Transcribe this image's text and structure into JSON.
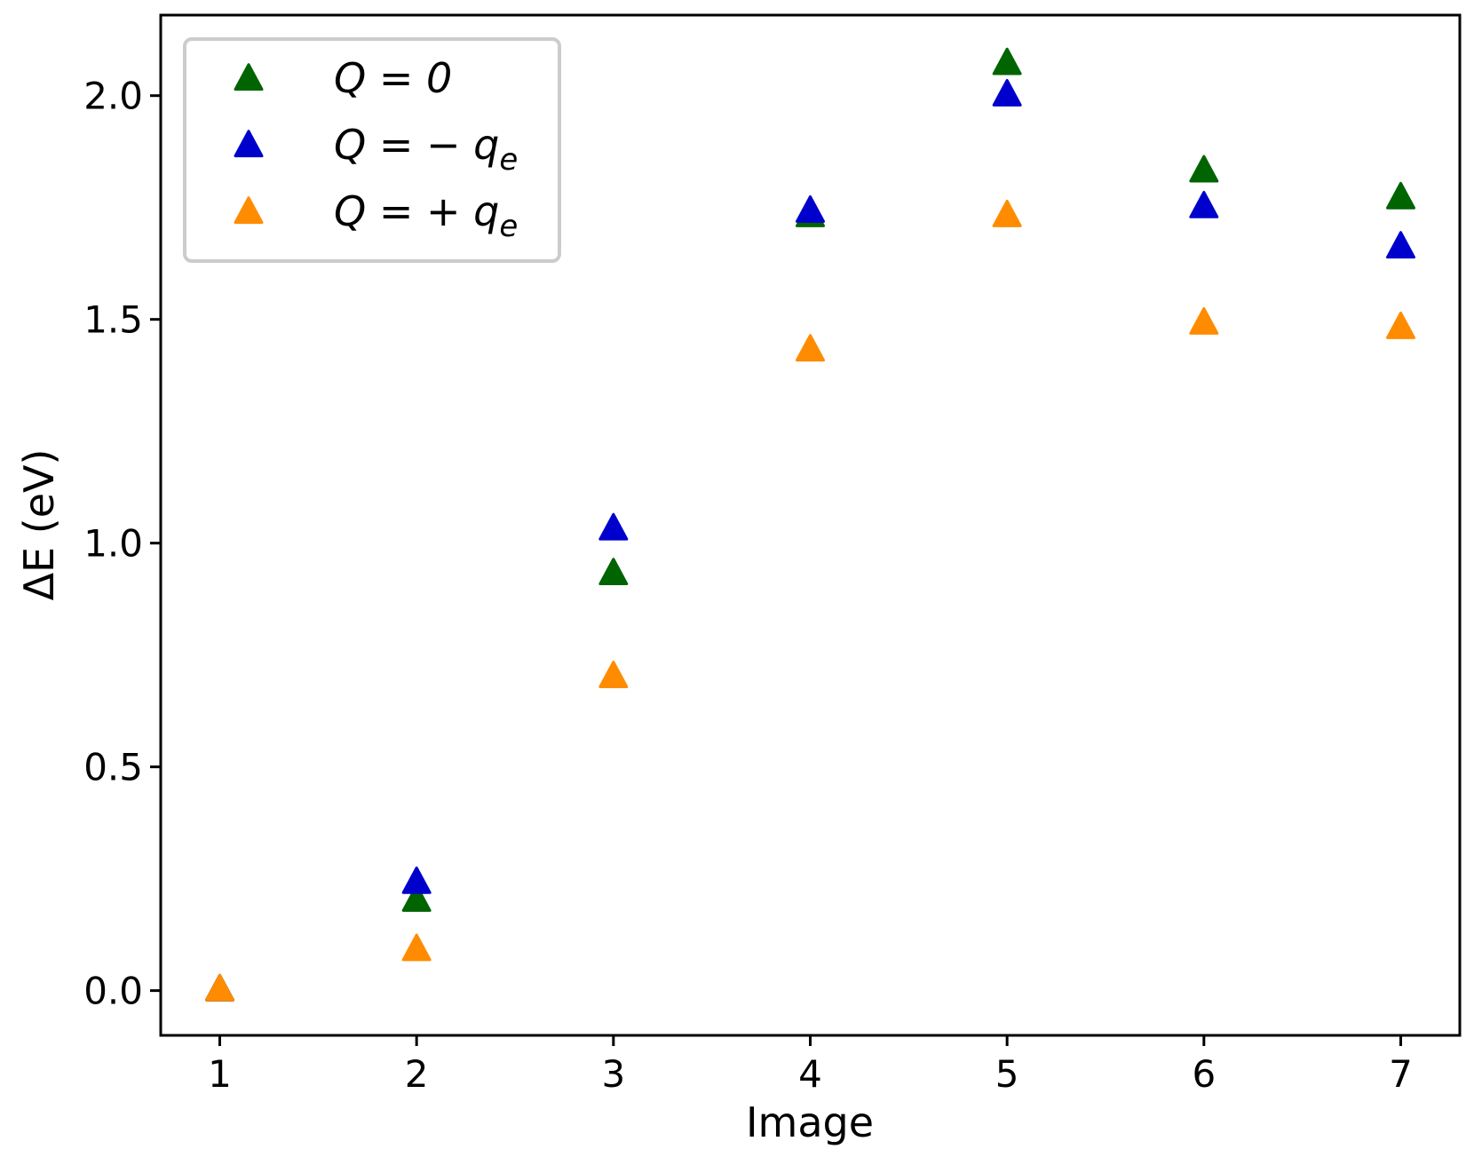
{
  "chart_data": {
    "type": "scatter",
    "xlabel": "Image",
    "ylabel": "ΔE (eV)",
    "xlim": [
      0.7,
      7.3
    ],
    "ylim": [
      -0.1,
      2.18
    ],
    "xticks": [
      1,
      2,
      3,
      4,
      5,
      6,
      7
    ],
    "yticks": [
      0.0,
      0.5,
      1.0,
      1.5,
      2.0
    ],
    "ytick_labels": [
      "0.0",
      "0.5",
      "1.0",
      "1.5",
      "2.0"
    ],
    "grid": false,
    "legend_position": "top-left",
    "marker": "triangle-up",
    "series": [
      {
        "name": "Q = 0",
        "label_main": "Q = 0",
        "label_sub": "",
        "color": "#006400",
        "x": [
          1,
          2,
          3,
          4,
          5,
          6,
          7
        ],
        "y": [
          0.0,
          0.2,
          0.93,
          1.73,
          2.07,
          1.83,
          1.77
        ]
      },
      {
        "name": "Q = −qₑ",
        "label_main": "Q = − q",
        "label_sub": "e",
        "color": "#0000cd",
        "x": [
          1,
          2,
          3,
          4,
          5,
          6,
          7
        ],
        "y": [
          0.0,
          0.24,
          1.03,
          1.74,
          2.0,
          1.75,
          1.66
        ]
      },
      {
        "name": "Q = +qₑ",
        "label_main": "Q = + q",
        "label_sub": "e",
        "color": "#ff8c00",
        "x": [
          1,
          2,
          3,
          4,
          5,
          6,
          7
        ],
        "y": [
          0.0,
          0.09,
          0.7,
          1.43,
          1.73,
          1.49,
          1.48
        ]
      }
    ]
  }
}
